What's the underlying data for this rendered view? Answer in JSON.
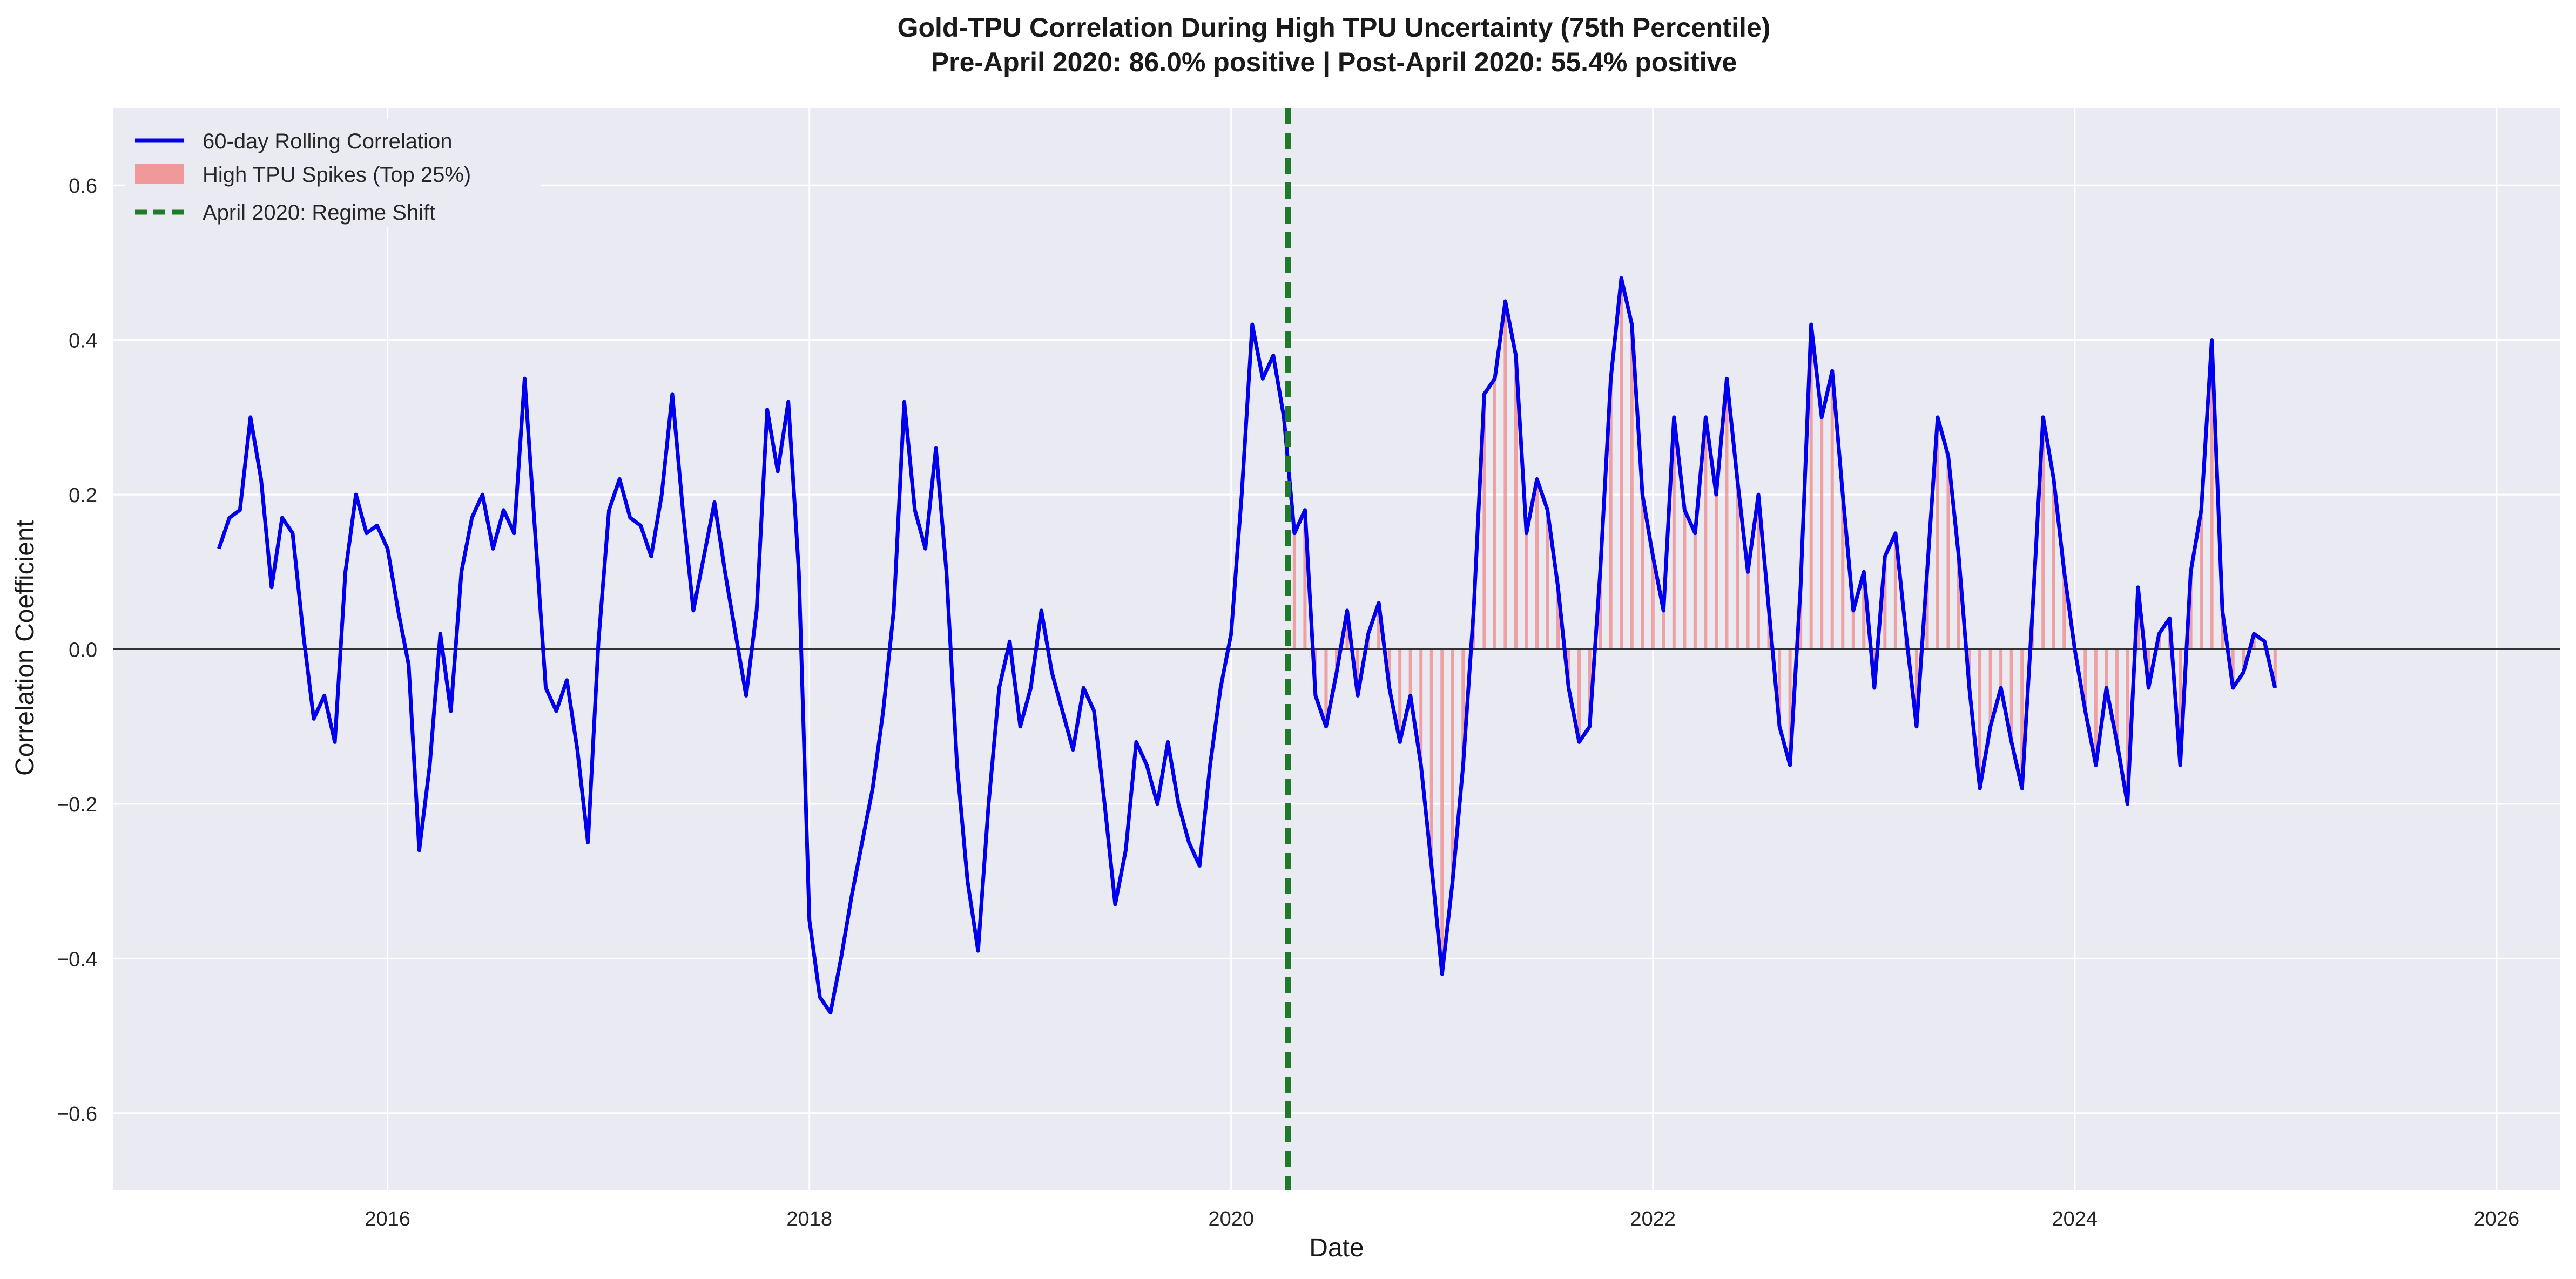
{
  "chart_data": {
    "type": "line",
    "title": "Gold-TPU Correlation During High TPU Uncertainty (75th Percentile)",
    "subtitle": "Pre-April 2020: 86.0% positive | Post-April 2020: 55.4% positive",
    "xlabel": "Date",
    "ylabel": "Correlation Coefficient",
    "xlim": [
      2014.7,
      2026.3
    ],
    "ylim": [
      -0.7,
      0.7
    ],
    "x_ticks": [
      2016,
      2018,
      2020,
      2022,
      2024,
      2026
    ],
    "x_tick_labels": [
      "2016",
      "2018",
      "2020",
      "2022",
      "2024",
      "2026"
    ],
    "y_ticks": [
      -0.6,
      -0.4,
      -0.2,
      0.0,
      0.2,
      0.4,
      0.6
    ],
    "y_tick_labels": [
      "−0.6",
      "−0.4",
      "−0.2",
      "0.0",
      "0.2",
      "0.4",
      "0.6"
    ],
    "grid": true,
    "legend_position": "top-left",
    "reference_lines": {
      "zero_line": 0.0,
      "regime_shift_x": 2020.27
    },
    "series": [
      {
        "name": "60-day Rolling Correlation",
        "kind": "line",
        "color": "#0000ee",
        "points": [
          [
            2015.2,
            0.13
          ],
          [
            2015.25,
            0.17
          ],
          [
            2015.3,
            0.18
          ],
          [
            2015.35,
            0.3
          ],
          [
            2015.4,
            0.22
          ],
          [
            2015.45,
            0.08
          ],
          [
            2015.5,
            0.17
          ],
          [
            2015.55,
            0.15
          ],
          [
            2015.6,
            0.02
          ],
          [
            2015.65,
            -0.09
          ],
          [
            2015.7,
            -0.06
          ],
          [
            2015.75,
            -0.12
          ],
          [
            2015.8,
            0.1
          ],
          [
            2015.85,
            0.2
          ],
          [
            2015.9,
            0.15
          ],
          [
            2015.95,
            0.16
          ],
          [
            2016.0,
            0.13
          ],
          [
            2016.05,
            0.05
          ],
          [
            2016.1,
            -0.02
          ],
          [
            2016.15,
            -0.26
          ],
          [
            2016.2,
            -0.15
          ],
          [
            2016.25,
            0.02
          ],
          [
            2016.3,
            -0.08
          ],
          [
            2016.35,
            0.1
          ],
          [
            2016.4,
            0.17
          ],
          [
            2016.45,
            0.2
          ],
          [
            2016.5,
            0.13
          ],
          [
            2016.55,
            0.18
          ],
          [
            2016.6,
            0.15
          ],
          [
            2016.65,
            0.35
          ],
          [
            2016.7,
            0.15
          ],
          [
            2016.75,
            -0.05
          ],
          [
            2016.8,
            -0.08
          ],
          [
            2016.85,
            -0.04
          ],
          [
            2016.9,
            -0.13
          ],
          [
            2016.95,
            -0.25
          ],
          [
            2017.0,
            0.01
          ],
          [
            2017.05,
            0.18
          ],
          [
            2017.1,
            0.22
          ],
          [
            2017.15,
            0.17
          ],
          [
            2017.2,
            0.16
          ],
          [
            2017.25,
            0.12
          ],
          [
            2017.3,
            0.2
          ],
          [
            2017.35,
            0.33
          ],
          [
            2017.4,
            0.18
          ],
          [
            2017.45,
            0.05
          ],
          [
            2017.5,
            0.12
          ],
          [
            2017.55,
            0.19
          ],
          [
            2017.6,
            0.1
          ],
          [
            2017.65,
            0.02
          ],
          [
            2017.7,
            -0.06
          ],
          [
            2017.75,
            0.05
          ],
          [
            2017.8,
            0.31
          ],
          [
            2017.85,
            0.23
          ],
          [
            2017.9,
            0.32
          ],
          [
            2017.95,
            0.1
          ],
          [
            2018.0,
            -0.35
          ],
          [
            2018.05,
            -0.45
          ],
          [
            2018.1,
            -0.47
          ],
          [
            2018.15,
            -0.4
          ],
          [
            2018.2,
            -0.32
          ],
          [
            2018.25,
            -0.25
          ],
          [
            2018.3,
            -0.18
          ],
          [
            2018.35,
            -0.08
          ],
          [
            2018.4,
            0.05
          ],
          [
            2018.45,
            0.32
          ],
          [
            2018.5,
            0.18
          ],
          [
            2018.55,
            0.13
          ],
          [
            2018.6,
            0.26
          ],
          [
            2018.65,
            0.1
          ],
          [
            2018.7,
            -0.15
          ],
          [
            2018.75,
            -0.3
          ],
          [
            2018.8,
            -0.39
          ],
          [
            2018.85,
            -0.2
          ],
          [
            2018.9,
            -0.05
          ],
          [
            2018.95,
            0.01
          ],
          [
            2019.0,
            -0.1
          ],
          [
            2019.05,
            -0.05
          ],
          [
            2019.1,
            0.05
          ],
          [
            2019.15,
            -0.03
          ],
          [
            2019.2,
            -0.08
          ],
          [
            2019.25,
            -0.13
          ],
          [
            2019.3,
            -0.05
          ],
          [
            2019.35,
            -0.08
          ],
          [
            2019.4,
            -0.2
          ],
          [
            2019.45,
            -0.33
          ],
          [
            2019.5,
            -0.26
          ],
          [
            2019.55,
            -0.12
          ],
          [
            2019.6,
            -0.15
          ],
          [
            2019.65,
            -0.2
          ],
          [
            2019.7,
            -0.12
          ],
          [
            2019.75,
            -0.2
          ],
          [
            2019.8,
            -0.25
          ],
          [
            2019.85,
            -0.28
          ],
          [
            2019.9,
            -0.15
          ],
          [
            2019.95,
            -0.05
          ],
          [
            2020.0,
            0.02
          ],
          [
            2020.05,
            0.2
          ],
          [
            2020.1,
            0.42
          ],
          [
            2020.15,
            0.35
          ],
          [
            2020.2,
            0.38
          ],
          [
            2020.25,
            0.3
          ],
          [
            2020.3,
            0.15
          ],
          [
            2020.35,
            0.18
          ],
          [
            2020.4,
            -0.06
          ],
          [
            2020.45,
            -0.1
          ],
          [
            2020.5,
            -0.03
          ],
          [
            2020.55,
            0.05
          ],
          [
            2020.6,
            -0.06
          ],
          [
            2020.65,
            0.02
          ],
          [
            2020.7,
            0.06
          ],
          [
            2020.75,
            -0.05
          ],
          [
            2020.8,
            -0.12
          ],
          [
            2020.85,
            -0.06
          ],
          [
            2020.9,
            -0.15
          ],
          [
            2020.95,
            -0.28
          ],
          [
            2021.0,
            -0.42
          ],
          [
            2021.05,
            -0.3
          ],
          [
            2021.1,
            -0.15
          ],
          [
            2021.15,
            0.05
          ],
          [
            2021.2,
            0.33
          ],
          [
            2021.25,
            0.35
          ],
          [
            2021.3,
            0.45
          ],
          [
            2021.35,
            0.38
          ],
          [
            2021.4,
            0.15
          ],
          [
            2021.45,
            0.22
          ],
          [
            2021.5,
            0.18
          ],
          [
            2021.55,
            0.08
          ],
          [
            2021.6,
            -0.05
          ],
          [
            2021.65,
            -0.12
          ],
          [
            2021.7,
            -0.1
          ],
          [
            2021.75,
            0.1
          ],
          [
            2021.8,
            0.35
          ],
          [
            2021.85,
            0.48
          ],
          [
            2021.9,
            0.42
          ],
          [
            2021.95,
            0.2
          ],
          [
            2022.0,
            0.12
          ],
          [
            2022.05,
            0.05
          ],
          [
            2022.1,
            0.3
          ],
          [
            2022.15,
            0.18
          ],
          [
            2022.2,
            0.15
          ],
          [
            2022.25,
            0.3
          ],
          [
            2022.3,
            0.2
          ],
          [
            2022.35,
            0.35
          ],
          [
            2022.4,
            0.22
          ],
          [
            2022.45,
            0.1
          ],
          [
            2022.5,
            0.2
          ],
          [
            2022.55,
            0.05
          ],
          [
            2022.6,
            -0.1
          ],
          [
            2022.65,
            -0.15
          ],
          [
            2022.7,
            0.08
          ],
          [
            2022.75,
            0.42
          ],
          [
            2022.8,
            0.3
          ],
          [
            2022.85,
            0.36
          ],
          [
            2022.9,
            0.2
          ],
          [
            2022.95,
            0.05
          ],
          [
            2023.0,
            0.1
          ],
          [
            2023.05,
            -0.05
          ],
          [
            2023.1,
            0.12
          ],
          [
            2023.15,
            0.15
          ],
          [
            2023.2,
            0.02
          ],
          [
            2023.25,
            -0.1
          ],
          [
            2023.3,
            0.1
          ],
          [
            2023.35,
            0.3
          ],
          [
            2023.4,
            0.25
          ],
          [
            2023.45,
            0.12
          ],
          [
            2023.5,
            -0.05
          ],
          [
            2023.55,
            -0.18
          ],
          [
            2023.6,
            -0.1
          ],
          [
            2023.65,
            -0.05
          ],
          [
            2023.7,
            -0.12
          ],
          [
            2023.75,
            -0.18
          ],
          [
            2023.8,
            0.05
          ],
          [
            2023.85,
            0.3
          ],
          [
            2023.9,
            0.22
          ],
          [
            2023.95,
            0.1
          ],
          [
            2024.0,
            0.0
          ],
          [
            2024.05,
            -0.08
          ],
          [
            2024.1,
            -0.15
          ],
          [
            2024.15,
            -0.05
          ],
          [
            2024.2,
            -0.12
          ],
          [
            2024.25,
            -0.2
          ],
          [
            2024.3,
            0.08
          ],
          [
            2024.35,
            -0.05
          ],
          [
            2024.4,
            0.02
          ],
          [
            2024.45,
            0.04
          ],
          [
            2024.5,
            -0.15
          ],
          [
            2024.55,
            0.1
          ],
          [
            2024.6,
            0.18
          ],
          [
            2024.65,
            0.4
          ],
          [
            2024.7,
            0.05
          ],
          [
            2024.75,
            -0.05
          ],
          [
            2024.8,
            -0.03
          ],
          [
            2024.85,
            0.02
          ],
          [
            2024.9,
            0.01
          ],
          [
            2024.95,
            -0.05
          ]
        ]
      }
    ],
    "legend": [
      {
        "name": "60-day Rolling Correlation",
        "style": "line",
        "color": "#0000ee"
      },
      {
        "name": "High TPU Spikes (Top 25%)",
        "style": "patch",
        "color": "#f0999b"
      },
      {
        "name": "April 2020: Regime Shift",
        "style": "dashed",
        "color": "#1f7a2a"
      }
    ]
  },
  "colors": {
    "plot_background": "#eaeaf2",
    "grid": "#ffffff",
    "line": "#0000ee",
    "spike_fill": "#f08080",
    "regime_line": "#1f7a2a",
    "zero_line": "#333333"
  }
}
